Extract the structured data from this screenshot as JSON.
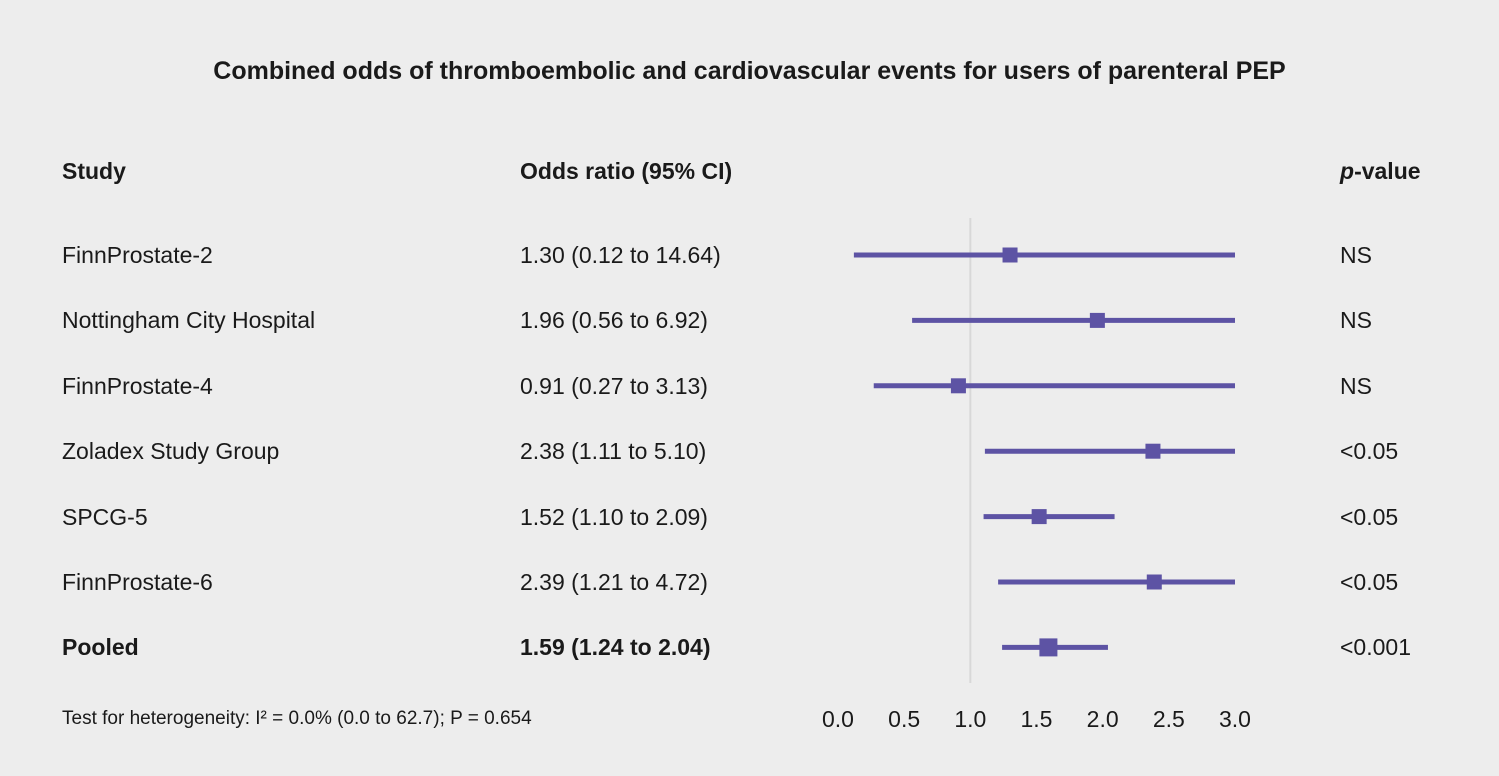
{
  "colors": {
    "background": "#ededed",
    "text": "#1a1a1a",
    "accent_purple": "#5d53a4",
    "reference_line": "#d8d8d8"
  },
  "table": {
    "columns": {
      "study": "Study",
      "odds_ratio": "Odds ratio (95% CI)",
      "p_italic": "p",
      "p_rest": "-value"
    }
  },
  "chart_data": {
    "type": "forest",
    "title": "Combined odds of thromboembolic and cardiovascular events for users of parenteral PEP",
    "x_axis": {
      "min": 0.0,
      "max": 3.0,
      "ticks": [
        "0.0",
        "0.5",
        "1.0",
        "1.5",
        "2.0",
        "2.5",
        "3.0"
      ],
      "reference_line": 1.0
    },
    "studies": [
      {
        "name": "FinnProstate-2",
        "or": 1.3,
        "ci_low": 0.12,
        "ci_high": 14.64,
        "label": "1.30 (0.12 to 14.64)",
        "p": "NS",
        "pooled": false
      },
      {
        "name": "Nottingham City Hospital",
        "or": 1.96,
        "ci_low": 0.56,
        "ci_high": 6.92,
        "label": "1.96 (0.56 to 6.92)",
        "p": "NS",
        "pooled": false
      },
      {
        "name": "FinnProstate-4",
        "or": 0.91,
        "ci_low": 0.27,
        "ci_high": 3.13,
        "label": "0.91 (0.27 to 3.13)",
        "p": "NS",
        "pooled": false
      },
      {
        "name": "Zoladex Study Group",
        "or": 2.38,
        "ci_low": 1.11,
        "ci_high": 5.1,
        "label": "2.38 (1.11 to 5.10)",
        "p": "<0.05",
        "pooled": false
      },
      {
        "name": "SPCG-5",
        "or": 1.52,
        "ci_low": 1.1,
        "ci_high": 2.09,
        "label": "1.52 (1.10 to 2.09)",
        "p": "<0.05",
        "pooled": false
      },
      {
        "name": "FinnProstate-6",
        "or": 2.39,
        "ci_low": 1.21,
        "ci_high": 4.72,
        "label": "2.39 (1.21 to 4.72)",
        "p": "<0.05",
        "pooled": false
      },
      {
        "name": "Pooled",
        "or": 1.59,
        "ci_low": 1.24,
        "ci_high": 2.04,
        "label": "1.59 (1.24 to 2.04)",
        "p": "<0.001",
        "pooled": true
      }
    ],
    "heterogeneity": "Test for heterogeneity: I² = 0.0% (0.0 to 62.7); P = 0.654"
  }
}
